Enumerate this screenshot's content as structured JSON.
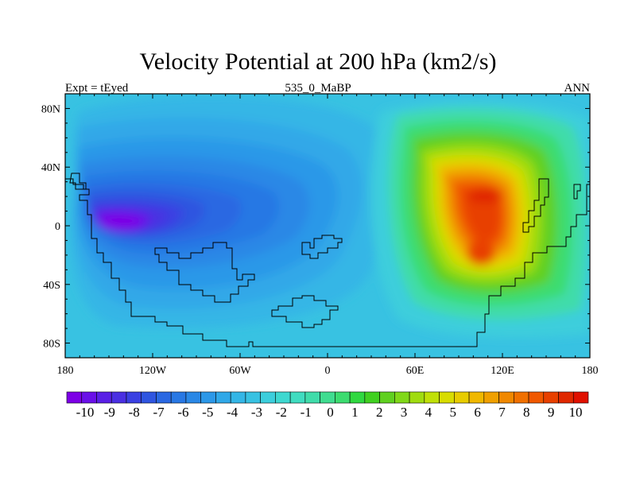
{
  "title": "Velocity Potential at 200 hPa (km2/s)",
  "subtitle_left": "Expt = tEyed",
  "subtitle_center": "535_0_MaBP",
  "subtitle_right": "ANN",
  "map": {
    "projection": "cylindrical-equidistant",
    "lon_range": [
      -180,
      180
    ],
    "lat_range": [
      -90,
      90
    ],
    "x_ticks": [
      {
        "value": -180,
        "label": "180"
      },
      {
        "value": -120,
        "label": "120W"
      },
      {
        "value": -60,
        "label": "60W"
      },
      {
        "value": 0,
        "label": "0"
      },
      {
        "value": 60,
        "label": "60E"
      },
      {
        "value": 120,
        "label": "120E"
      },
      {
        "value": 180,
        "label": "180"
      }
    ],
    "y_ticks": [
      {
        "value": 80,
        "label": "80N"
      },
      {
        "value": 40,
        "label": "40N"
      },
      {
        "value": 0,
        "label": "0"
      },
      {
        "value": -40,
        "label": "40S"
      },
      {
        "value": -80,
        "label": "80S"
      }
    ],
    "field": {
      "min_center": {
        "lon": -140,
        "lat": 0,
        "value": -10
      },
      "max_center": {
        "lon": 115,
        "lat": 10,
        "value": 9
      }
    }
  },
  "colorbar": {
    "labels": [
      "-10",
      "-9",
      "-8",
      "-7",
      "-6",
      "-5",
      "-4",
      "-3",
      "-2",
      "-1",
      "0",
      "1",
      "2",
      "3",
      "4",
      "5",
      "6",
      "7",
      "8",
      "9",
      "10"
    ],
    "colors": [
      "#7d00e6",
      "#6a10e8",
      "#5a20e6",
      "#4a30e2",
      "#3a40e2",
      "#2f55e0",
      "#2a68e2",
      "#2878e4",
      "#2a88e6",
      "#2c98e8",
      "#30a8e8",
      "#34b6e6",
      "#38c2e2",
      "#3ccedc",
      "#3ed8d0",
      "#40dcc0",
      "#40dcaa",
      "#40dc90",
      "#3cdc70",
      "#30d840",
      "#40d020",
      "#60d020",
      "#80d818",
      "#a0dc10",
      "#c0e008",
      "#d8dc00",
      "#e8cc00",
      "#f0b800",
      "#f0a000",
      "#f08800",
      "#f07000",
      "#f05800",
      "#e84000",
      "#e02800",
      "#e01000"
    ]
  }
}
